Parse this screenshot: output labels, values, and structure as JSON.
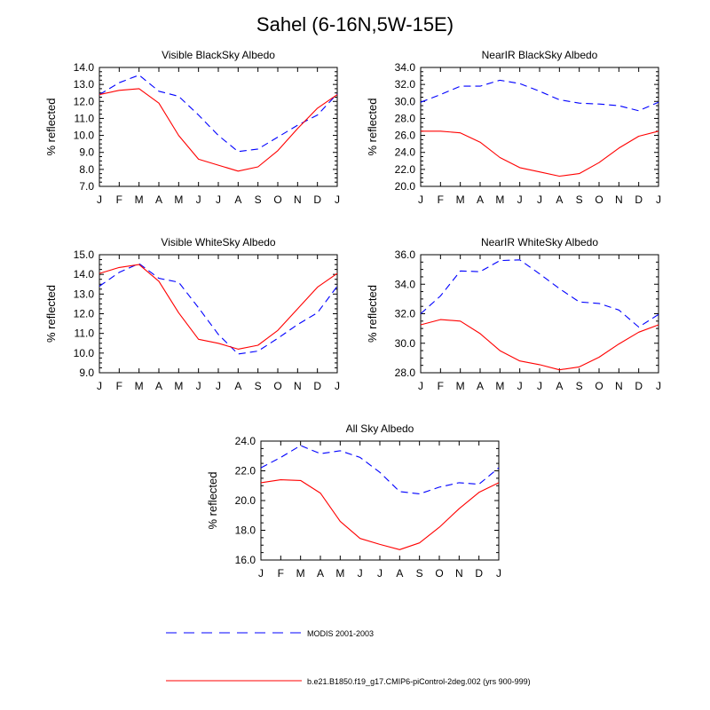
{
  "figure": {
    "title": "Sahel (6-16N,5W-15E)"
  },
  "legend": {
    "entries": [
      {
        "label": "MODIS 2001-2003",
        "color": "#0000ff",
        "dash": "dashed"
      },
      {
        "label": "b.e21.B1850.f19_g17.CMIP6-piControl-2deg.002 (yrs 900-999)",
        "color": "#ff0000",
        "dash": "solid"
      }
    ]
  },
  "chart_data": [
    {
      "type": "line",
      "title": "Visible BlackSky Albedo",
      "xlabel": "",
      "ylabel": "% reflected",
      "categories": [
        "J",
        "F",
        "M",
        "A",
        "M",
        "J",
        "J",
        "A",
        "S",
        "O",
        "N",
        "D",
        "J"
      ],
      "ylim": [
        7.0,
        14.0
      ],
      "yticks": [
        "7.0",
        "8.0",
        "9.0",
        "10.0",
        "11.0",
        "12.0",
        "13.0",
        "14.0"
      ],
      "series": [
        {
          "name": "MODIS 2001-2003",
          "values": [
            12.4,
            13.1,
            13.55,
            12.6,
            12.3,
            11.2,
            10.0,
            9.05,
            9.2,
            9.9,
            10.6,
            11.2,
            12.45
          ]
        },
        {
          "name": "b.e21.B1850.f19_g17.CMIP6-piControl-2deg.002 (yrs 900-999)",
          "values": [
            12.4,
            12.65,
            12.75,
            11.9,
            10.0,
            8.6,
            8.25,
            7.9,
            8.15,
            9.1,
            10.4,
            11.6,
            12.4
          ]
        }
      ]
    },
    {
      "type": "line",
      "title": "NearIR BlackSky Albedo",
      "xlabel": "",
      "ylabel": "% reflected",
      "categories": [
        "J",
        "F",
        "M",
        "A",
        "M",
        "J",
        "J",
        "A",
        "S",
        "O",
        "N",
        "D",
        "J"
      ],
      "ylim": [
        20.0,
        34.0
      ],
      "yticks": [
        "20.0",
        "22.0",
        "24.0",
        "26.0",
        "28.0",
        "30.0",
        "32.0",
        "34.0"
      ],
      "series": [
        {
          "name": "MODIS 2001-2003",
          "values": [
            29.9,
            30.8,
            31.8,
            31.8,
            32.5,
            32.1,
            31.2,
            30.2,
            29.8,
            29.7,
            29.5,
            28.9,
            29.9
          ]
        },
        {
          "name": "b.e21.B1850.f19_g17.CMIP6-piControl-2deg.002 (yrs 900-999)",
          "values": [
            26.5,
            26.5,
            26.3,
            25.2,
            23.4,
            22.2,
            21.7,
            21.2,
            21.5,
            22.8,
            24.5,
            25.9,
            26.5
          ]
        }
      ]
    },
    {
      "type": "line",
      "title": "Visible WhiteSky Albedo",
      "xlabel": "",
      "ylabel": "% reflected",
      "categories": [
        "J",
        "F",
        "M",
        "A",
        "M",
        "J",
        "J",
        "A",
        "S",
        "O",
        "N",
        "D",
        "J"
      ],
      "ylim": [
        9.0,
        15.0
      ],
      "yticks": [
        "9.0",
        "10.0",
        "11.0",
        "12.0",
        "13.0",
        "14.0",
        "15.0"
      ],
      "series": [
        {
          "name": "MODIS 2001-2003",
          "values": [
            13.4,
            14.1,
            14.55,
            13.8,
            13.6,
            12.3,
            10.95,
            9.95,
            10.1,
            10.75,
            11.45,
            12.05,
            13.4
          ]
        },
        {
          "name": "b.e21.B1850.f19_g17.CMIP6-piControl-2deg.002 (yrs 900-999)",
          "values": [
            14.05,
            14.35,
            14.5,
            13.65,
            12.05,
            10.7,
            10.5,
            10.2,
            10.4,
            11.15,
            12.25,
            13.35,
            14.05
          ]
        }
      ]
    },
    {
      "type": "line",
      "title": "NearIR WhiteSky Albedo",
      "xlabel": "",
      "ylabel": "% reflected",
      "categories": [
        "J",
        "F",
        "M",
        "A",
        "M",
        "J",
        "J",
        "A",
        "S",
        "O",
        "N",
        "D",
        "J"
      ],
      "ylim": [
        28.0,
        36.0
      ],
      "yticks": [
        "28.0",
        "30.0",
        "32.0",
        "34.0",
        "36.0"
      ],
      "series": [
        {
          "name": "MODIS 2001-2003",
          "values": [
            32.0,
            33.2,
            34.9,
            34.85,
            35.6,
            35.65,
            34.7,
            33.7,
            32.8,
            32.7,
            32.25,
            31.1,
            31.95
          ]
        },
        {
          "name": "b.e21.B1850.f19_g17.CMIP6-piControl-2deg.002 (yrs 900-999)",
          "values": [
            31.25,
            31.6,
            31.5,
            30.65,
            29.5,
            28.8,
            28.55,
            28.2,
            28.4,
            29.05,
            29.95,
            30.75,
            31.25
          ]
        }
      ]
    },
    {
      "type": "line",
      "title": "All Sky Albedo",
      "xlabel": "",
      "ylabel": "% reflected",
      "categories": [
        "J",
        "F",
        "M",
        "A",
        "M",
        "J",
        "J",
        "A",
        "S",
        "O",
        "N",
        "D",
        "J"
      ],
      "ylim": [
        16.0,
        24.0
      ],
      "yticks": [
        "16.0",
        "18.0",
        "20.0",
        "22.0",
        "24.0"
      ],
      "series": [
        {
          "name": "MODIS 2001-2003",
          "values": [
            22.2,
            22.9,
            23.7,
            23.15,
            23.35,
            22.9,
            21.9,
            20.6,
            20.45,
            20.9,
            21.2,
            21.1,
            22.2
          ]
        },
        {
          "name": "b.e21.B1850.f19_g17.CMIP6-piControl-2deg.002 (yrs 900-999)",
          "values": [
            21.2,
            21.4,
            21.35,
            20.5,
            18.6,
            17.45,
            17.05,
            16.7,
            17.15,
            18.2,
            19.45,
            20.55,
            21.2
          ]
        }
      ]
    }
  ]
}
